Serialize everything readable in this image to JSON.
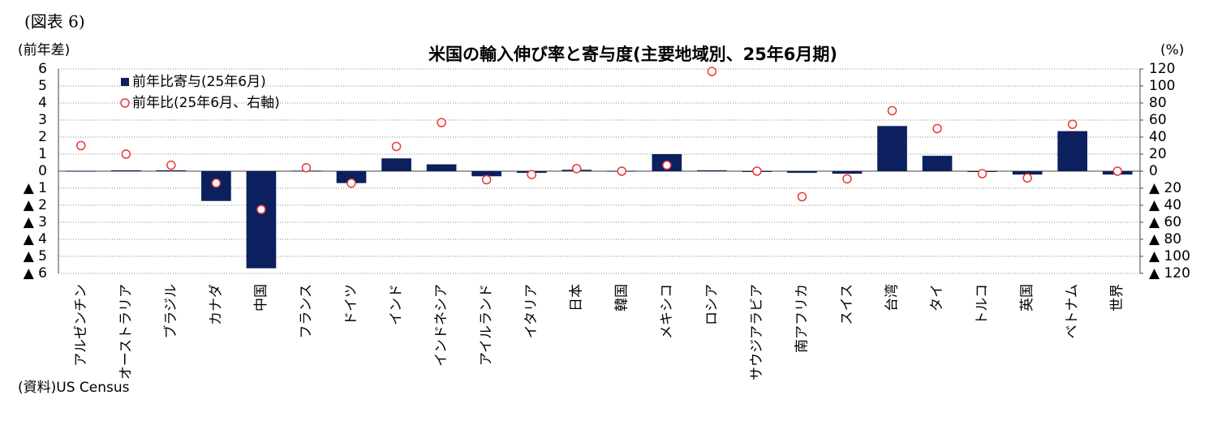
{
  "chart_data": {
    "type": "bar",
    "figure_label": "(図表 6)",
    "title": "米国の輸入伸び率と寄与度(主要地域別、25年6月期)",
    "y_label": "(前年差)",
    "y2_label": "(%)",
    "source": "(資料)US Census",
    "categories": [
      "アルゼンチン",
      "オーストラリア",
      "ブラジル",
      "カナダ",
      "中国",
      "フランス",
      "ドイツ",
      "インド",
      "インドネシア",
      "アイルランド",
      "イタリア",
      "日本",
      "韓国",
      "メキシコ",
      "ロシア",
      "サウジアラビア",
      "南アフリカ",
      "スイス",
      "台湾",
      "タイ",
      "トルコ",
      "英国",
      "ベトナム",
      "世界"
    ],
    "series": [
      {
        "name": "前年比寄与(25年6月)",
        "type": "bar",
        "color": "#0c1f5e",
        "values": [
          0.02,
          0.05,
          0.05,
          -1.75,
          -5.7,
          0.03,
          -0.7,
          0.75,
          0.4,
          -0.3,
          -0.1,
          0.08,
          0.02,
          1.0,
          0.05,
          0.0,
          -0.1,
          -0.15,
          2.65,
          0.9,
          0.0,
          -0.2,
          2.35,
          -0.2
        ]
      },
      {
        "name": "前年比(25年6月、右軸)",
        "type": "scatter",
        "axis": "y2",
        "color": "#e8393a",
        "values": [
          30,
          20,
          7,
          -14,
          -45,
          4,
          -14,
          29,
          57,
          -10,
          -4,
          3,
          0,
          7,
          117,
          0,
          -30,
          -9,
          71,
          50,
          -3,
          -8,
          55,
          0
        ]
      }
    ],
    "ylim": [
      -6,
      6
    ],
    "yticks": [
      6,
      5,
      4,
      3,
      2,
      1,
      0,
      {
        "value": -1,
        "label": "▲ 1"
      },
      {
        "value": -2,
        "label": "▲ 2"
      },
      {
        "value": -3,
        "label": "▲ 3"
      },
      {
        "value": -4,
        "label": "▲ 4"
      },
      {
        "value": -5,
        "label": "▲ 5"
      },
      {
        "value": -6,
        "label": "▲ 6"
      }
    ],
    "y2lim": [
      -120,
      120
    ],
    "y2ticks": [
      120,
      100,
      80,
      60,
      40,
      20,
      0,
      {
        "value": -20,
        "label": "▲ 20"
      },
      {
        "value": -40,
        "label": "▲ 40"
      },
      {
        "value": -60,
        "label": "▲ 60"
      },
      {
        "value": -80,
        "label": "▲ 80"
      },
      {
        "value": -100,
        "label": "▲ 100"
      },
      {
        "value": -120,
        "label": "▲ 120"
      }
    ],
    "grid": true
  }
}
